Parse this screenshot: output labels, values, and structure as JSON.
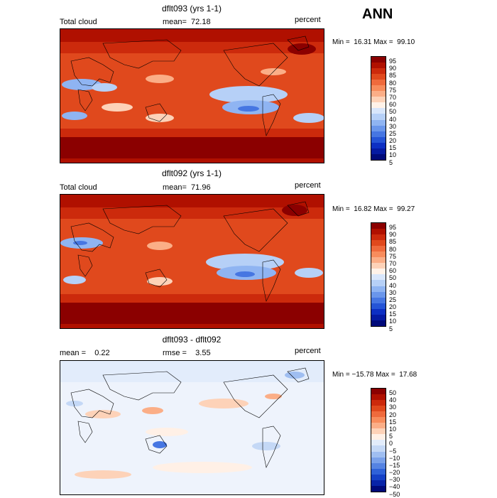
{
  "season": "ANN",
  "panels": [
    {
      "title": "dflt093 (yrs 1-1)",
      "left_label": "Total cloud",
      "mean_label": "mean=  72.18",
      "units": "percent",
      "minmax": "Min =  16.31 Max =  99.10",
      "kind": "abs"
    },
    {
      "title": "dflt092 (yrs 1-1)",
      "left_label": "Total cloud",
      "mean_label": "mean=  71.96",
      "units": "percent",
      "minmax": "Min =  16.82 Max =  99.27",
      "kind": "abs"
    },
    {
      "title": "dflt093 - dflt092",
      "left_label": "mean =    0.22",
      "mean_label": "rmse =    3.55",
      "units": "percent",
      "minmax": "Min = −15.78 Max =  17.68",
      "kind": "diff"
    }
  ],
  "colorbars": {
    "abs": {
      "colors": [
        "#8b0000",
        "#b01000",
        "#cc2a0c",
        "#e0491d",
        "#ef6a3c",
        "#f88c5c",
        "#fbae87",
        "#fdd2b8",
        "#fff2e8",
        "#d8e6fb",
        "#b6d0f7",
        "#8fb4f2",
        "#6a96eb",
        "#4676e2",
        "#2554d6",
        "#0d2fc3",
        "#051aa2",
        "#000a7a"
      ],
      "labels": [
        "95",
        "90",
        "85",
        "80",
        "75",
        "70",
        "60",
        "50",
        "40",
        "30",
        "25",
        "20",
        "15",
        "10",
        "5"
      ]
    },
    "diff": {
      "colors": [
        "#8b0000",
        "#b01000",
        "#cc2a0c",
        "#e0491d",
        "#ef6a3c",
        "#f88c5c",
        "#fbae87",
        "#fdd2b8",
        "#fff0e6",
        "#e2ecfb",
        "#c4d8f6",
        "#9fbef1",
        "#7aa1ea",
        "#5583e2",
        "#2f62d8",
        "#1541c6",
        "#0824a8",
        "#000a7a"
      ],
      "labels": [
        "50",
        "40",
        "30",
        "20",
        "15",
        "10",
        "5",
        "0",
        "−5",
        "−10",
        "−15",
        "−20",
        "−30",
        "−40",
        "−50"
      ]
    }
  }
}
